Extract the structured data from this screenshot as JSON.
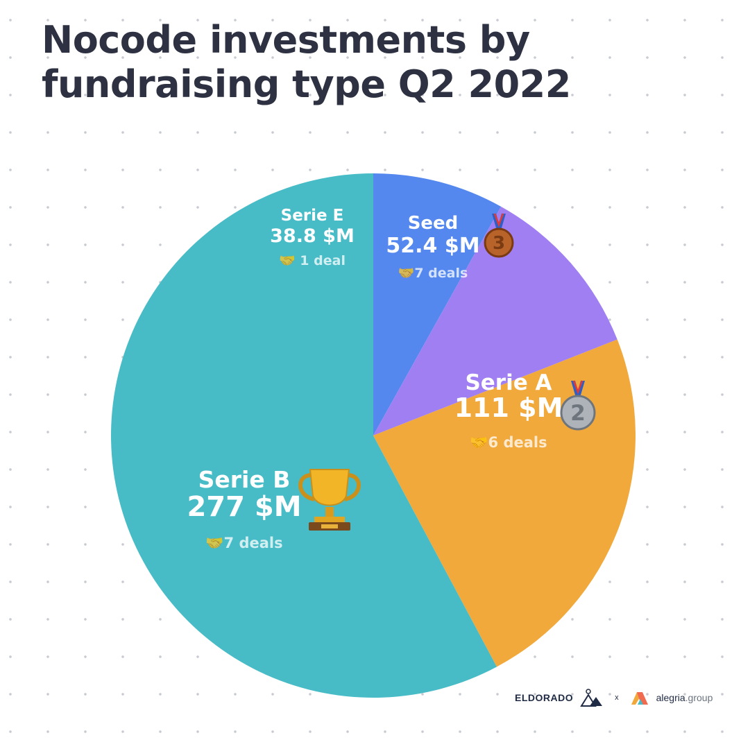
{
  "title": {
    "line1": "Nocode investments by",
    "line2": "fundraising type Q2 2022"
  },
  "chart_data": {
    "type": "pie",
    "unit": "$M",
    "slices": [
      {
        "label": "Serie E",
        "value": 38.8,
        "value_label": "38.8 $M",
        "deals": "🤝 1 deal",
        "color": "#5588ee",
        "badge": ""
      },
      {
        "label": "Seed",
        "value": 52.4,
        "value_label": "52.4 $M",
        "deals": "🤝7 deals",
        "color": "#a07ff2",
        "badge": "bronze-medal-icon"
      },
      {
        "label": "Serie A",
        "value": 111,
        "value_label": "111 $M",
        "deals": "🤝6 deals",
        "color": "#f2a93c",
        "badge": "silver-medal-icon"
      },
      {
        "label": "Serie B",
        "value": 277,
        "value_label": "277 $M",
        "deals": "🤝7 deals",
        "color": "#48bcc6",
        "badge": "trophy-icon"
      }
    ]
  },
  "footer": {
    "brand_left": "ELDORADO",
    "separator": "x",
    "brand_right": "alegria",
    "brand_right_suffix": ".group"
  }
}
